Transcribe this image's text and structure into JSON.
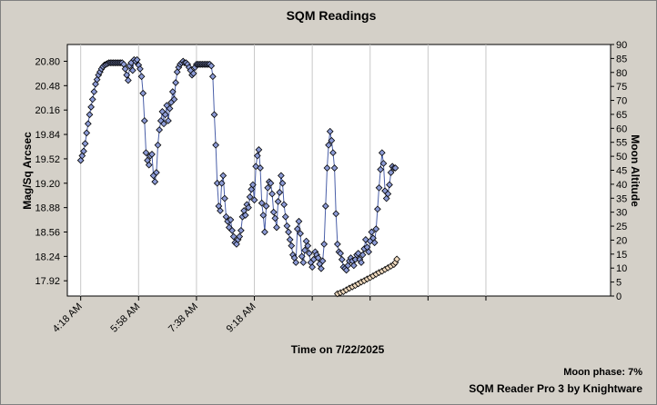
{
  "chart_data": {
    "type": "scatter",
    "title": "SQM Readings",
    "xlabel": "Time on 7/22/2025",
    "ylabel": "Mag/Sq Arcsec",
    "y2label": "Moon Altitude",
    "x_ticks": [
      "4:18 AM",
      "5:58 AM",
      "7:38 AM",
      "9:18 AM",
      "",
      "",
      "",
      ""
    ],
    "ylim": [
      17.72,
      21.02
    ],
    "y_ticks": [
      "17.92",
      "18.24",
      "18.56",
      "18.88",
      "19.20",
      "19.52",
      "19.84",
      "20.16",
      "20.48",
      "20.80"
    ],
    "y2lim": [
      0,
      90
    ],
    "y2_ticks": [
      "0",
      "5",
      "10",
      "15",
      "20",
      "25",
      "30",
      "35",
      "40",
      "45",
      "50",
      "55",
      "60",
      "65",
      "70",
      "75",
      "80",
      "85",
      "90"
    ],
    "grid": true,
    "series": [
      {
        "axis": "left",
        "color": "#8c9bd6",
        "points": [
          [
            0,
            19.5
          ],
          [
            1,
            19.56
          ],
          [
            2,
            19.62
          ],
          [
            3,
            19.72
          ],
          [
            4,
            19.86
          ],
          [
            5,
            19.98
          ],
          [
            6,
            20.1
          ],
          [
            7,
            20.2
          ],
          [
            8,
            20.3
          ],
          [
            9,
            20.4
          ],
          [
            10,
            20.5
          ],
          [
            11,
            20.56
          ],
          [
            12,
            20.62
          ],
          [
            13,
            20.66
          ],
          [
            14,
            20.7
          ],
          [
            15,
            20.73
          ],
          [
            16,
            20.75
          ],
          [
            17,
            20.76
          ],
          [
            18,
            20.77
          ],
          [
            19,
            20.78
          ],
          [
            20,
            20.78
          ],
          [
            21,
            20.78
          ],
          [
            22,
            20.78
          ],
          [
            23,
            20.78
          ],
          [
            24,
            20.78
          ],
          [
            25,
            20.78
          ],
          [
            26,
            20.78
          ],
          [
            27,
            20.78
          ],
          [
            28,
            20.78
          ],
          [
            29,
            20.76
          ],
          [
            30,
            20.7
          ],
          [
            31,
            20.62
          ],
          [
            32,
            20.55
          ],
          [
            33,
            20.74
          ],
          [
            34,
            20.78
          ],
          [
            35,
            20.68
          ],
          [
            36,
            20.82
          ],
          [
            37,
            20.8
          ],
          [
            38,
            20.82
          ],
          [
            39,
            20.75
          ],
          [
            40,
            20.7
          ],
          [
            41,
            20.6
          ],
          [
            42,
            20.38
          ],
          [
            43,
            20.02
          ],
          [
            44,
            19.6
          ],
          [
            45,
            19.5
          ],
          [
            46,
            19.44
          ],
          [
            47,
            19.56
          ],
          [
            48,
            19.58
          ],
          [
            49,
            19.3
          ],
          [
            50,
            19.22
          ],
          [
            51,
            19.34
          ],
          [
            52,
            19.7
          ],
          [
            53,
            19.9
          ],
          [
            54,
            20.02
          ],
          [
            55,
            20.14
          ],
          [
            56,
            19.98
          ],
          [
            57,
            20.1
          ],
          [
            58,
            20.22
          ],
          [
            59,
            20.02
          ],
          [
            60,
            20.18
          ],
          [
            61,
            20.26
          ],
          [
            62,
            20.4
          ],
          [
            63,
            20.3
          ],
          [
            64,
            20.52
          ],
          [
            65,
            20.66
          ],
          [
            66,
            20.72
          ],
          [
            67,
            20.76
          ],
          [
            68,
            20.78
          ],
          [
            69,
            20.8
          ],
          [
            70,
            20.78
          ],
          [
            71,
            20.78
          ],
          [
            72,
            20.76
          ],
          [
            73,
            20.72
          ],
          [
            74,
            20.68
          ],
          [
            75,
            20.62
          ],
          [
            76,
            20.64
          ],
          [
            77,
            20.72
          ],
          [
            78,
            20.76
          ],
          [
            79,
            20.76
          ],
          [
            80,
            20.76
          ],
          [
            81,
            20.76
          ],
          [
            82,
            20.76
          ],
          [
            83,
            20.76
          ],
          [
            84,
            20.76
          ],
          [
            85,
            20.76
          ],
          [
            86,
            20.76
          ],
          [
            87,
            20.76
          ],
          [
            88,
            20.74
          ],
          [
            89,
            20.6
          ],
          [
            90,
            20.1
          ],
          [
            91,
            19.7
          ],
          [
            92,
            19.2
          ],
          [
            93,
            18.9
          ],
          [
            94,
            18.84
          ],
          [
            95,
            19.2
          ],
          [
            96,
            19.3
          ],
          [
            97,
            19.0
          ],
          [
            98,
            18.76
          ],
          [
            99,
            18.7
          ],
          [
            100,
            18.62
          ],
          [
            101,
            18.72
          ],
          [
            102,
            18.58
          ],
          [
            103,
            18.5
          ],
          [
            104,
            18.42
          ],
          [
            105,
            18.4
          ],
          [
            106,
            18.46
          ],
          [
            107,
            18.5
          ],
          [
            108,
            18.58
          ],
          [
            109,
            18.76
          ],
          [
            110,
            18.84
          ],
          [
            111,
            18.78
          ],
          [
            112,
            18.92
          ],
          [
            113,
            18.88
          ],
          [
            114,
            19.02
          ],
          [
            115,
            19.12
          ],
          [
            116,
            19.18
          ],
          [
            117,
            18.98
          ],
          [
            118,
            19.42
          ],
          [
            119,
            19.56
          ],
          [
            120,
            19.64
          ],
          [
            121,
            19.4
          ],
          [
            122,
            18.94
          ],
          [
            123,
            18.78
          ],
          [
            124,
            18.56
          ],
          [
            125,
            18.9
          ],
          [
            126,
            19.14
          ],
          [
            127,
            19.22
          ],
          [
            128,
            19.2
          ],
          [
            129,
            19.06
          ],
          [
            130,
            18.82
          ],
          [
            131,
            18.74
          ],
          [
            132,
            18.62
          ],
          [
            133,
            18.96
          ],
          [
            134,
            19.08
          ],
          [
            135,
            19.3
          ],
          [
            136,
            19.2
          ],
          [
            137,
            18.92
          ],
          [
            138,
            18.76
          ],
          [
            139,
            18.64
          ],
          [
            140,
            18.56
          ],
          [
            141,
            18.46
          ],
          [
            142,
            18.38
          ],
          [
            143,
            18.26
          ],
          [
            144,
            18.22
          ],
          [
            145,
            18.16
          ],
          [
            146,
            18.6
          ],
          [
            147,
            18.7
          ],
          [
            148,
            18.54
          ],
          [
            149,
            18.24
          ],
          [
            150,
            18.16
          ],
          [
            151,
            18.32
          ],
          [
            152,
            18.44
          ],
          [
            153,
            18.38
          ],
          [
            154,
            18.28
          ],
          [
            155,
            18.16
          ],
          [
            156,
            18.1
          ],
          [
            157,
            18.2
          ],
          [
            158,
            18.3
          ],
          [
            159,
            18.26
          ],
          [
            160,
            18.22
          ],
          [
            161,
            18.14
          ],
          [
            162,
            18.08
          ],
          [
            163,
            18.18
          ],
          [
            164,
            18.4
          ],
          [
            165,
            18.9
          ],
          [
            166,
            19.4
          ],
          [
            167,
            19.7
          ],
          [
            168,
            19.88
          ],
          [
            169,
            19.76
          ],
          [
            170,
            19.6
          ],
          [
            171,
            19.4
          ],
          [
            172,
            18.8
          ],
          [
            173,
            18.4
          ],
          [
            174,
            18.3
          ],
          [
            175,
            18.28
          ],
          [
            176,
            18.2
          ],
          [
            177,
            18.1
          ],
          [
            178,
            18.08
          ],
          [
            179,
            18.06
          ],
          [
            180,
            18.12
          ],
          [
            181,
            18.18
          ],
          [
            182,
            18.22
          ],
          [
            183,
            18.18
          ],
          [
            184,
            18.12
          ],
          [
            185,
            18.2
          ],
          [
            186,
            18.26
          ],
          [
            187,
            18.28
          ],
          [
            188,
            18.2
          ],
          [
            189,
            18.16
          ],
          [
            190,
            18.26
          ],
          [
            191,
            18.34
          ],
          [
            192,
            18.46
          ],
          [
            193,
            18.36
          ],
          [
            194,
            18.3
          ],
          [
            195,
            18.44
          ],
          [
            196,
            18.56
          ],
          [
            197,
            18.48
          ],
          [
            198,
            18.42
          ],
          [
            199,
            18.6
          ],
          [
            200,
            18.86
          ],
          [
            201,
            19.14
          ],
          [
            202,
            19.38
          ],
          [
            203,
            19.6
          ],
          [
            204,
            19.46
          ],
          [
            205,
            19.1
          ],
          [
            206,
            19.0
          ],
          [
            207,
            19.06
          ],
          [
            208,
            19.18
          ],
          [
            209,
            19.34
          ],
          [
            210,
            19.42
          ],
          [
            211,
            19.4
          ],
          [
            212,
            19.4
          ]
        ]
      },
      {
        "axis": "right",
        "color": "#f2dcc0",
        "points": [
          [
            173,
            0.8
          ],
          [
            175,
            1.2
          ],
          [
            177,
            1.6
          ],
          [
            179,
            2.2
          ],
          [
            181,
            2.8
          ],
          [
            183,
            3.3
          ],
          [
            185,
            3.8
          ],
          [
            187,
            4.4
          ],
          [
            189,
            5.0
          ],
          [
            191,
            5.5
          ],
          [
            193,
            6.1
          ],
          [
            195,
            6.6
          ],
          [
            197,
            7.2
          ],
          [
            199,
            7.8
          ],
          [
            201,
            8.4
          ],
          [
            203,
            8.9
          ],
          [
            205,
            9.5
          ],
          [
            207,
            10.1
          ],
          [
            209,
            10.7
          ],
          [
            211,
            11.3
          ],
          [
            212,
            12.0
          ],
          [
            213,
            13.2
          ]
        ]
      }
    ],
    "xlim": [
      -9,
      357
    ],
    "x_tick_values": [
      0,
      39,
      78,
      117,
      156,
      195,
      234,
      273
    ],
    "moon_phase": "Moon phase: 7%",
    "credit": "SQM Reader Pro 3 by Knightware"
  }
}
